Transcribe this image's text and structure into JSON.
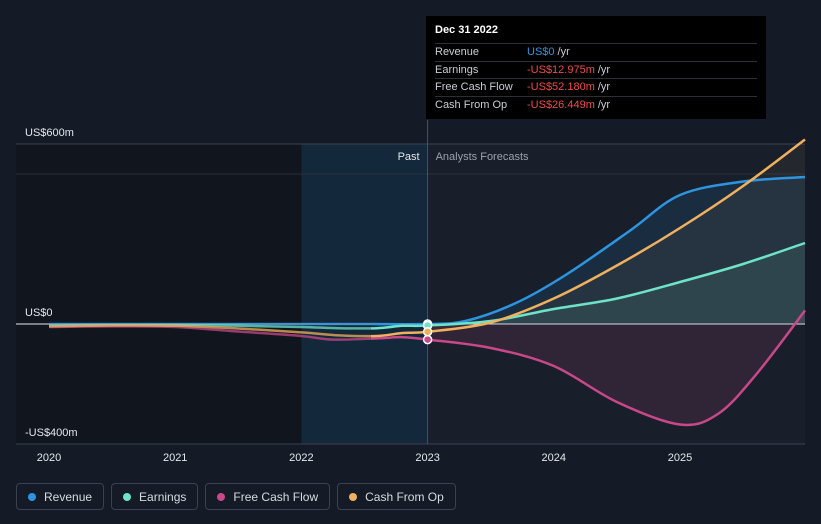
{
  "tooltip": {
    "date": "Dec 31 2022",
    "rows": [
      {
        "label": "Revenue",
        "value": "US$0",
        "unit": "/yr",
        "sign": "pos"
      },
      {
        "label": "Earnings",
        "value": "-US$12.975m",
        "unit": "/yr",
        "sign": "neg"
      },
      {
        "label": "Free Cash Flow",
        "value": "-US$52.180m",
        "unit": "/yr",
        "sign": "neg"
      },
      {
        "label": "Cash From Op",
        "value": "-US$26.449m",
        "unit": "/yr",
        "sign": "neg"
      }
    ]
  },
  "legend": [
    {
      "label": "Revenue",
      "color": "#2d95e0"
    },
    {
      "label": "Earnings",
      "color": "#6fe3c8"
    },
    {
      "label": "Free Cash Flow",
      "color": "#c8488a"
    },
    {
      "label": "Cash From Op",
      "color": "#f0b05e"
    }
  ],
  "chart_data": {
    "type": "line",
    "y_tick_labels": [
      "US$600m",
      "US$0",
      "-US$400m"
    ],
    "ylim": [
      -400,
      600
    ],
    "x_tick_labels": [
      "2020",
      "2021",
      "2022",
      "2023",
      "2024",
      "2025"
    ],
    "xlim": [
      2019.75,
      2025.99
    ],
    "past_label": "Past",
    "forecast_label": "Analysts Forecasts",
    "divider_x": 2023.0,
    "series": [
      {
        "name": "Revenue",
        "color": "#2d95e0",
        "x": [
          2019.75,
          2020.5,
          2021.0,
          2021.5,
          2022.0,
          2022.5,
          2023.0,
          2023.3,
          2023.7,
          2024.1,
          2024.6,
          2025.0,
          2025.5,
          2026.0
        ],
        "y": [
          0,
          0,
          0,
          0,
          0,
          0,
          0,
          10,
          70,
          165,
          310,
          430,
          475,
          490
        ]
      },
      {
        "name": "Earnings",
        "color": "#6fe3c8",
        "x": [
          2019.75,
          2020.5,
          2021.0,
          2021.5,
          2022.0,
          2022.3,
          2022.6,
          2022.8,
          2023.0,
          2023.5,
          2024.0,
          2024.5,
          2025.0,
          2025.5,
          2026.0
        ],
        "y": [
          -5,
          -3,
          -3,
          -6,
          -10,
          -14,
          -14,
          -6,
          -5,
          10,
          50,
          85,
          140,
          200,
          270
        ]
      },
      {
        "name": "Free Cash Flow",
        "color": "#c8488a",
        "x": [
          2019.75,
          2020.5,
          2021.0,
          2021.5,
          2022.0,
          2022.25,
          2022.6,
          2022.8,
          2023.0,
          2023.5,
          2024.0,
          2024.5,
          2025.0,
          2025.3,
          2025.6,
          2026.0
        ],
        "y": [
          -10,
          -8,
          -10,
          -25,
          -40,
          -52,
          -48,
          -44,
          -52,
          -80,
          -140,
          -260,
          -335,
          -300,
          -170,
          45
        ]
      },
      {
        "name": "Cash From Op",
        "color": "#f0b05e",
        "x": [
          2019.75,
          2020.5,
          2021.0,
          2021.5,
          2022.0,
          2022.3,
          2022.6,
          2022.8,
          2023.0,
          2023.5,
          2024.0,
          2024.5,
          2025.0,
          2025.5,
          2026.0
        ],
        "y": [
          -8,
          -5,
          -6,
          -15,
          -28,
          -38,
          -40,
          -30,
          -26,
          5,
          85,
          195,
          320,
          460,
          615
        ]
      }
    ]
  }
}
